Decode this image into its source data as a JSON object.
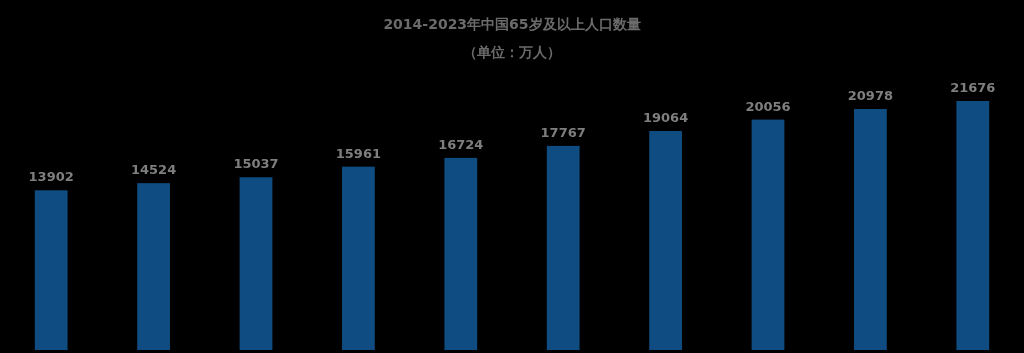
{
  "chart_data": {
    "type": "bar",
    "title": "2014-2023年中国65岁及以上人口数量",
    "subtitle": "（单位：万人）",
    "categories": [
      null,
      null,
      null,
      null,
      null,
      null,
      null,
      null,
      null,
      null
    ],
    "values": [
      13902,
      14524,
      15037,
      15961,
      16724,
      17767,
      19064,
      20056,
      20978,
      21676
    ],
    "color": "#0f4c81",
    "data_labels": true
  }
}
